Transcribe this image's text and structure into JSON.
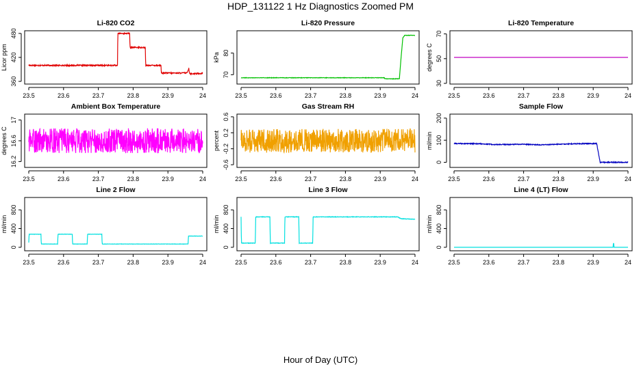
{
  "figure": {
    "title": "HDP_131122  1 Hz Diagnostics Zoomed PM",
    "xlabel": "Hour of Day (UTC)"
  },
  "chart_data": [
    {
      "type": "line",
      "title": "Li-820 CO2",
      "ylabel": "Licor ppm",
      "xlim": [
        23.5,
        24.0
      ],
      "ylim": [
        355,
        485
      ],
      "xticks": [
        23.5,
        23.6,
        23.7,
        23.8,
        23.9,
        24.0
      ],
      "yticks": [
        360,
        420,
        480
      ],
      "color": "#e00000",
      "noise": 1.5,
      "series": [
        {
          "x": [
            23.5,
            23.755,
            23.756,
            23.79,
            23.791,
            23.835,
            23.836,
            23.88,
            23.881,
            23.955,
            23.96,
            23.962,
            23.965,
            24.0
          ],
          "y": [
            400,
            400,
            480,
            480,
            445,
            445,
            400,
            400,
            381,
            381,
            393,
            381,
            379,
            380
          ]
        }
      ]
    },
    {
      "type": "line",
      "title": "Li-820 Pressure",
      "ylabel": "kPa",
      "xlim": [
        23.5,
        24.0
      ],
      "ylim": [
        66,
        90
      ],
      "xticks": [
        23.5,
        23.6,
        23.7,
        23.8,
        23.9,
        24.0
      ],
      "yticks": [
        70,
        80
      ],
      "color": "#00c000",
      "noise": 0.1,
      "series": [
        {
          "x": [
            23.5,
            23.912,
            23.913,
            23.955,
            23.96,
            23.965,
            23.97,
            24.0
          ],
          "y": [
            68.6,
            68.6,
            68.1,
            68.1,
            78,
            87,
            88.2,
            88.2
          ]
        }
      ]
    },
    {
      "type": "line",
      "title": "Li-820 Temperature",
      "ylabel": "degrees C",
      "xlim": [
        23.5,
        24.0
      ],
      "ylim": [
        30,
        72
      ],
      "xticks": [
        23.5,
        23.6,
        23.7,
        23.8,
        23.9,
        24.0
      ],
      "yticks": [
        30,
        50,
        70
      ],
      "color": "#c000c0",
      "noise": 0,
      "series": [
        {
          "x": [
            23.5,
            24.0
          ],
          "y": [
            51,
            51
          ]
        }
      ]
    },
    {
      "type": "line",
      "title": "Ambient Box Temperature",
      "ylabel": "degrees C",
      "xlim": [
        23.5,
        24.0
      ],
      "ylim": [
        16.1,
        17.1
      ],
      "xticks": [
        23.5,
        23.6,
        23.7,
        23.8,
        23.9,
        24.0
      ],
      "yticks": [
        16.2,
        16.6,
        17.0
      ],
      "color": "#ff00ff",
      "noise": 0.24,
      "series": [
        {
          "x": [
            23.5,
            24.0
          ],
          "y": [
            16.6,
            16.6
          ]
        }
      ]
    },
    {
      "type": "line",
      "title": "Gas Stream RH",
      "ylabel": "percent",
      "xlim": [
        23.5,
        24.0
      ],
      "ylim": [
        -0.65,
        0.65
      ],
      "xticks": [
        23.5,
        23.6,
        23.7,
        23.8,
        23.9,
        24.0
      ],
      "yticks": [
        -0.6,
        -0.2,
        0.2,
        0.6
      ],
      "color": "#f0a000",
      "noise": 0.3,
      "series": [
        {
          "x": [
            23.5,
            24.0
          ],
          "y": [
            0.0,
            0.0
          ]
        }
      ]
    },
    {
      "type": "line",
      "title": "Sample Flow",
      "ylabel": "ml/min",
      "xlim": [
        23.5,
        24.0
      ],
      "ylim": [
        -20,
        215
      ],
      "xticks": [
        23.5,
        23.6,
        23.7,
        23.8,
        23.9,
        24.0
      ],
      "yticks": [
        0,
        100,
        200
      ],
      "color": "#0000c0",
      "noise": 2,
      "series": [
        {
          "x": [
            23.5,
            23.58,
            23.62,
            23.7,
            23.75,
            23.8,
            23.85,
            23.91,
            23.92,
            23.94,
            24.0
          ],
          "y": [
            85,
            84,
            80,
            82,
            79,
            82,
            84,
            85,
            0,
            0,
            0
          ]
        }
      ]
    },
    {
      "type": "line",
      "title": "Line 2 Flow",
      "ylabel": "ml/min",
      "xlim": [
        23.5,
        24.0
      ],
      "ylim": [
        -60,
        1050
      ],
      "xticks": [
        23.5,
        23.6,
        23.7,
        23.8,
        23.9,
        24.0
      ],
      "yticks": [
        0,
        400,
        800
      ],
      "color": "#00e0e0",
      "noise": 3,
      "series": [
        {
          "x": [
            23.5,
            23.501,
            23.535,
            23.536,
            23.583,
            23.584,
            23.625,
            23.626,
            23.668,
            23.669,
            23.71,
            23.711,
            23.958,
            23.959,
            24.0
          ],
          "y": [
            100,
            280,
            280,
            70,
            70,
            280,
            280,
            70,
            70,
            280,
            280,
            70,
            70,
            240,
            240
          ]
        }
      ]
    },
    {
      "type": "line",
      "title": "Line 3 Flow",
      "ylabel": "ml/min",
      "xlim": [
        23.5,
        24.0
      ],
      "ylim": [
        -60,
        1050
      ],
      "xticks": [
        23.5,
        23.6,
        23.7,
        23.8,
        23.9,
        24.0
      ],
      "yticks": [
        0,
        400,
        800
      ],
      "color": "#00e0e0",
      "noise": 5,
      "series": [
        {
          "x": [
            23.5,
            23.501,
            23.502,
            23.541,
            23.542,
            23.583,
            23.584,
            23.625,
            23.626,
            23.666,
            23.667,
            23.706,
            23.707,
            23.95,
            23.96,
            24.0
          ],
          "y": [
            650,
            90,
            90,
            90,
            650,
            650,
            90,
            90,
            650,
            650,
            90,
            90,
            650,
            650,
            610,
            600
          ]
        }
      ]
    },
    {
      "type": "line",
      "title": "Line 4 (LT) Flow",
      "ylabel": "ml/min",
      "xlim": [
        23.5,
        24.0
      ],
      "ylim": [
        -60,
        1050
      ],
      "xticks": [
        23.5,
        23.6,
        23.7,
        23.8,
        23.9,
        24.0
      ],
      "yticks": [
        0,
        400,
        800
      ],
      "color": "#00e0e0",
      "noise": 0,
      "series": [
        {
          "x": [
            23.5,
            23.957,
            23.958,
            23.959,
            23.96,
            24.0
          ],
          "y": [
            0,
            0,
            80,
            80,
            0,
            0
          ]
        }
      ]
    }
  ]
}
